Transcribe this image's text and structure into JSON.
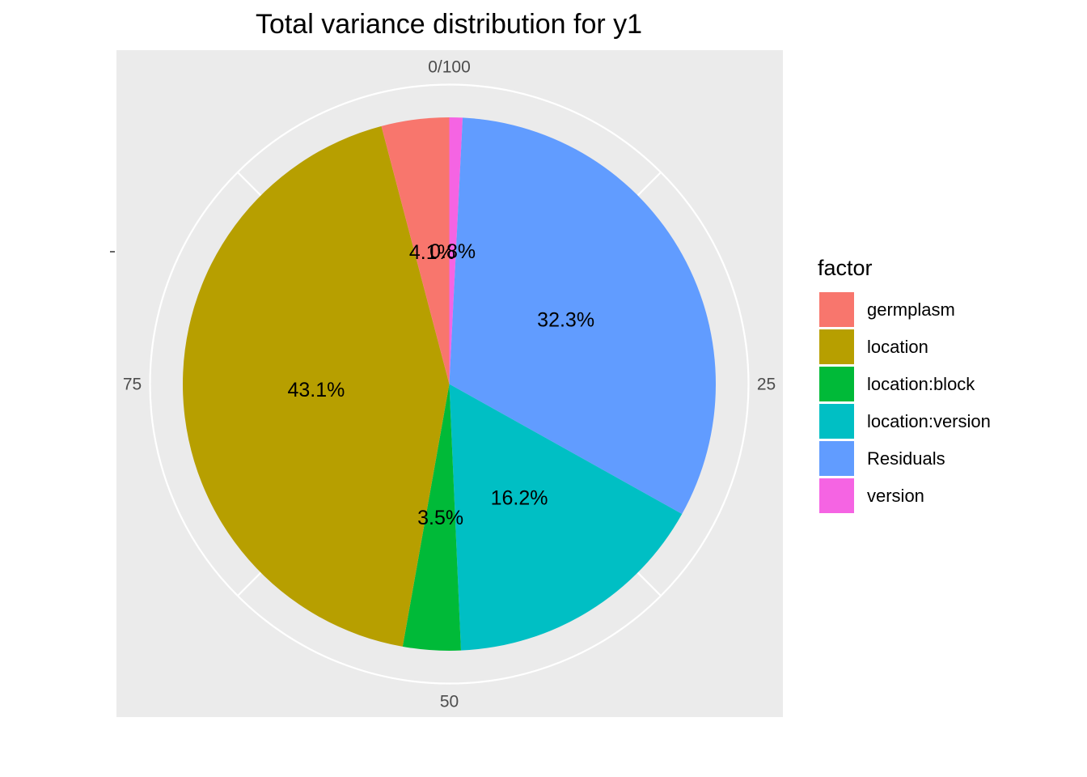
{
  "chart_data": {
    "type": "pie",
    "title": "Total variance distribution for y1",
    "theta_ticks": [
      "0/100",
      "25",
      "50",
      "75"
    ],
    "legend": {
      "title": "factor",
      "position": "right"
    },
    "slices": [
      {
        "label": "version",
        "value": 0.8,
        "text": "0.8%",
        "color": "#F564E3"
      },
      {
        "label": "Residuals",
        "value": 32.3,
        "text": "32.3%",
        "color": "#619CFF"
      },
      {
        "label": "location:version",
        "value": 16.2,
        "text": "16.2%",
        "color": "#00BFC4"
      },
      {
        "label": "location:block",
        "value": 3.5,
        "text": "3.5%",
        "color": "#00BA38"
      },
      {
        "label": "location",
        "value": 43.1,
        "text": "43.1%",
        "color": "#B79F00"
      },
      {
        "label": "germplasm",
        "value": 4.1,
        "text": "4.1%",
        "color": "#F8766D"
      }
    ],
    "legend_order": [
      "germplasm",
      "location",
      "location:block",
      "location:version",
      "Residuals",
      "version"
    ],
    "panel_background": "#EBEBEB",
    "grid_color": "#FFFFFF"
  }
}
